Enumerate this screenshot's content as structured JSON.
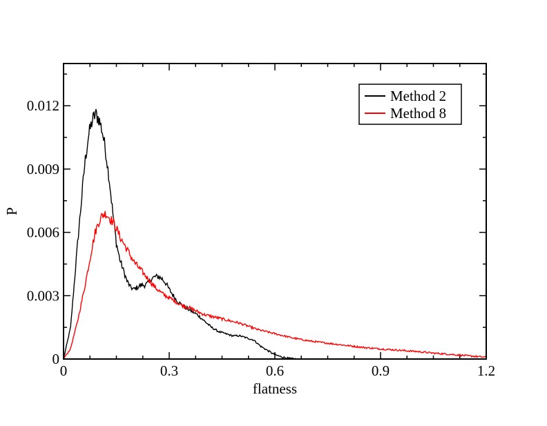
{
  "chart_data": {
    "type": "line",
    "title": "",
    "xlabel": "flatness",
    "ylabel": "P",
    "xlim": [
      0,
      1.2
    ],
    "ylim": [
      0,
      0.014
    ],
    "xticks": [
      0,
      0.3,
      0.6,
      0.9,
      1.2
    ],
    "xtick_labels": [
      "0",
      "0.3",
      "0.6",
      "0.9",
      "1.2"
    ],
    "yticks": [
      0,
      0.003,
      0.006,
      0.009,
      0.012
    ],
    "ytick_labels": [
      "0",
      "0.003",
      "0.006",
      "0.009",
      "0.012"
    ],
    "grid": false,
    "legend_position": "top-right",
    "series": [
      {
        "name": "Method 2",
        "color": "#000000",
        "x": [
          0,
          0.02,
          0.04,
          0.06,
          0.07,
          0.08,
          0.09,
          0.1,
          0.11,
          0.12,
          0.13,
          0.14,
          0.15,
          0.16,
          0.17,
          0.18,
          0.19,
          0.2,
          0.21,
          0.22,
          0.23,
          0.24,
          0.25,
          0.26,
          0.27,
          0.28,
          0.29,
          0.3,
          0.32,
          0.34,
          0.36,
          0.38,
          0.4,
          0.42,
          0.44,
          0.46,
          0.48,
          0.5,
          0.52,
          0.54,
          0.56,
          0.58,
          0.6,
          0.62,
          0.64,
          0.66
        ],
        "values": [
          0,
          0.0015,
          0.0055,
          0.0092,
          0.0105,
          0.0112,
          0.0116,
          0.0114,
          0.0108,
          0.0098,
          0.0085,
          0.0069,
          0.0055,
          0.0047,
          0.0042,
          0.0037,
          0.0034,
          0.0033,
          0.0034,
          0.0035,
          0.0035,
          0.0036,
          0.0038,
          0.0039,
          0.0039,
          0.0038,
          0.0036,
          0.0033,
          0.0028,
          0.0025,
          0.0023,
          0.0021,
          0.0018,
          0.0015,
          0.0013,
          0.0012,
          0.0011,
          0.0011,
          0.001,
          0.0009,
          0.0006,
          0.0004,
          0.0002,
          0.0001,
          3e-05,
          0
        ]
      },
      {
        "name": "Method 8",
        "color": "#ff0000",
        "x": [
          0,
          0.02,
          0.04,
          0.06,
          0.07,
          0.08,
          0.09,
          0.1,
          0.11,
          0.12,
          0.13,
          0.14,
          0.15,
          0.16,
          0.18,
          0.2,
          0.22,
          0.24,
          0.26,
          0.28,
          0.3,
          0.33,
          0.36,
          0.4,
          0.45,
          0.5,
          0.55,
          0.6,
          0.65,
          0.7,
          0.75,
          0.8,
          0.85,
          0.9,
          0.95,
          1.0,
          1.05,
          1.1,
          1.15,
          1.2
        ],
        "values": [
          0,
          0.0005,
          0.0018,
          0.0034,
          0.0043,
          0.0052,
          0.006,
          0.0065,
          0.0068,
          0.0069,
          0.0067,
          0.0065,
          0.0062,
          0.0058,
          0.0052,
          0.0046,
          0.0042,
          0.0038,
          0.0034,
          0.0031,
          0.0029,
          0.0026,
          0.0024,
          0.0021,
          0.0019,
          0.0017,
          0.0014,
          0.0012,
          0.001,
          0.00085,
          0.00075,
          0.00065,
          0.00055,
          0.00048,
          0.00042,
          0.00036,
          0.00028,
          0.00022,
          0.00015,
          8e-05
        ]
      }
    ]
  }
}
